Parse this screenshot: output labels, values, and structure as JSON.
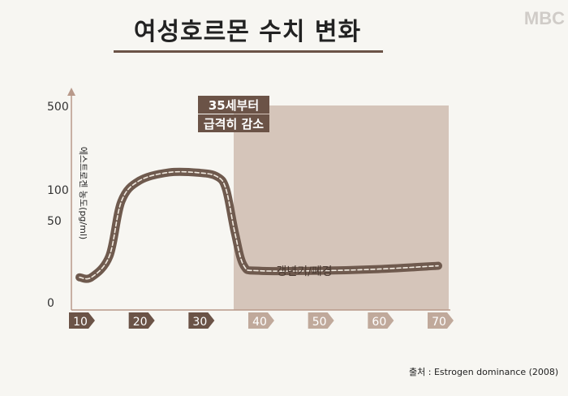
{
  "title": "여성호르몬 수치 변화",
  "watermark": "MBC",
  "source": "출처 : Estrogen dominance (2008)",
  "chart_data": {
    "type": "line",
    "ylabel": "에스트로겐 농도(pg/ml)",
    "y_ticks": [
      "500",
      "100",
      "50",
      "0"
    ],
    "x_ticks": [
      "10",
      "20",
      "30",
      "40",
      "50",
      "60",
      "70"
    ],
    "series": [
      {
        "x": [
          10,
          12,
          15,
          17,
          20,
          25,
          30,
          33,
          34.5,
          36,
          37.5,
          40,
          50,
          60,
          70
        ],
        "y": [
          15,
          15,
          28,
          80,
          140,
          180,
          178,
          160,
          100,
          42,
          22,
          19,
          19,
          20,
          22
        ]
      }
    ],
    "highlight_from_x": 35,
    "highlight_color": "#d5c5ba",
    "annotation": [
      "35세부터",
      "급격히 감소"
    ],
    "region_label": "갱년기/폐경",
    "colors": {
      "line": "#6f5a4e",
      "dash": "#f3ece2",
      "axis": "#b8998a",
      "tick_active": "#6b5347",
      "tick_inactive": "#c0a99b",
      "annotation_bg": "#6b5347"
    }
  }
}
